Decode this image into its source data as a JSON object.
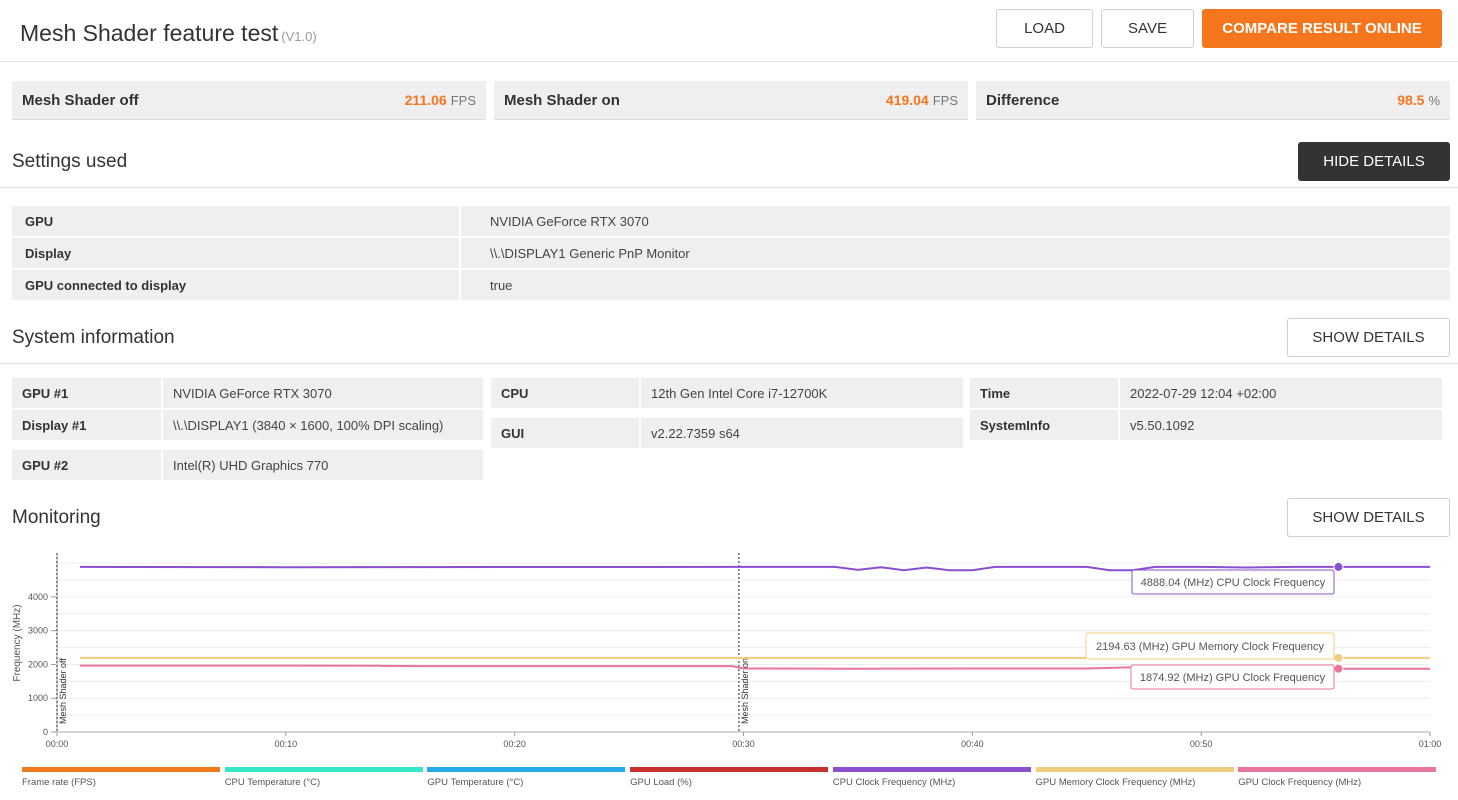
{
  "header": {
    "title": "Mesh Shader feature test",
    "version": "(V1.0)",
    "load_label": "LOAD",
    "save_label": "SAVE",
    "compare_label": "COMPARE RESULT ONLINE"
  },
  "scores": [
    {
      "name": "Mesh Shader off",
      "value": "211.06",
      "unit": "FPS"
    },
    {
      "name": "Mesh Shader on",
      "value": "419.04",
      "unit": "FPS"
    },
    {
      "name": "Difference",
      "value": "98.5",
      "unit": "%"
    }
  ],
  "settings": {
    "title": "Settings used",
    "toggle_label": "HIDE DETAILS",
    "rows": [
      {
        "key": "GPU",
        "value": "NVIDIA GeForce RTX 3070"
      },
      {
        "key": "Display",
        "value": "\\\\.\\DISPLAY1 Generic PnP Monitor"
      },
      {
        "key": "GPU connected to display",
        "value": "true"
      }
    ]
  },
  "system": {
    "title": "System information",
    "toggle_label": "SHOW DETAILS",
    "gpu1_key": "GPU #1",
    "gpu1_val": "NVIDIA GeForce RTX 3070",
    "display1_key": "Display #1",
    "display1_val": "\\\\.\\DISPLAY1 (3840 × 1600, 100% DPI scaling)",
    "gpu2_key": "GPU #2",
    "gpu2_val": "Intel(R) UHD Graphics 770",
    "cpu_key": "CPU",
    "cpu_val": "12th Gen Intel Core i7-12700K",
    "gui_key": "GUI",
    "gui_val": "v2.22.7359 s64",
    "time_key": "Time",
    "time_val": "2022-07-29 12:04 +02:00",
    "sysinfo_key": "SystemInfo",
    "sysinfo_val": "v5.50.1092"
  },
  "monitoring": {
    "title": "Monitoring",
    "toggle_label": "SHOW DETAILS"
  },
  "chart_data": {
    "type": "line",
    "ylabel": "Frequency (MHz)",
    "ylim": [
      0,
      5300
    ],
    "yticks": [
      0,
      1000,
      2000,
      3000,
      4000
    ],
    "xlim": [
      0,
      60
    ],
    "xticks": [
      "00:00",
      "00:10",
      "00:20",
      "00:30",
      "00:40",
      "00:50",
      "01:00"
    ],
    "markers": [
      {
        "label": "Mesh Shader off",
        "x": 0
      },
      {
        "label": "Mesh Shader on",
        "x": 29.8
      }
    ],
    "series": [
      {
        "name": "CPU Clock Frequency (MHz)",
        "color": "#8a4fce",
        "points": [
          [
            1,
            4888
          ],
          [
            10,
            4880
          ],
          [
            20,
            4885
          ],
          [
            29.8,
            4888
          ],
          [
            34,
            4888
          ],
          [
            35,
            4800
          ],
          [
            36,
            4880
          ],
          [
            37,
            4790
          ],
          [
            38,
            4870
          ],
          [
            39,
            4790
          ],
          [
            40,
            4790
          ],
          [
            41,
            4888
          ],
          [
            45,
            4888
          ],
          [
            46,
            4790
          ],
          [
            47,
            4790
          ],
          [
            48,
            4888
          ],
          [
            50,
            4888
          ],
          [
            52,
            4870
          ],
          [
            54,
            4888
          ],
          [
            56,
            4888
          ],
          [
            58,
            4888
          ],
          [
            60,
            4888
          ]
        ]
      },
      {
        "name": "GPU Memory Clock Frequency (MHz)",
        "color": "#f0cc7d",
        "points": [
          [
            1,
            2194.63
          ],
          [
            60,
            2194.63
          ]
        ]
      },
      {
        "name": "GPU Clock Frequency (MHz)",
        "color": "#e9759d",
        "points": [
          [
            1,
            1965
          ],
          [
            10,
            1965
          ],
          [
            14,
            1960
          ],
          [
            16,
            1950
          ],
          [
            29.5,
            1950
          ],
          [
            30,
            1880
          ],
          [
            35,
            1875
          ],
          [
            40,
            1880
          ],
          [
            45,
            1880
          ],
          [
            47,
            1920
          ],
          [
            50,
            1920
          ],
          [
            55,
            1874.92
          ],
          [
            60,
            1874.92
          ]
        ]
      }
    ],
    "tooltips": [
      {
        "text": "4888.04 (MHz) CPU Clock Frequency",
        "x": 56,
        "y": 4888.04,
        "color": "#8a4fce"
      },
      {
        "text": "2194.63 (MHz) GPU Memory Clock Frequency",
        "x": 56,
        "y": 2194.63,
        "color": "#f0cc7d"
      },
      {
        "text": "1874.92 (MHz) GPU Clock Frequency",
        "x": 56,
        "y": 1874.92,
        "color": "#e9759d"
      }
    ],
    "legend": [
      {
        "label": "Frame rate (FPS)",
        "color": "#f07b1f"
      },
      {
        "label": "CPU Temperature (°C)",
        "color": "#35e7c9"
      },
      {
        "label": "GPU Temperature (°C)",
        "color": "#27a8e8"
      },
      {
        "label": "GPU Load (%)",
        "color": "#c8302e"
      },
      {
        "label": "CPU Clock Frequency (MHz)",
        "color": "#8a4fce"
      },
      {
        "label": "GPU Memory Clock Frequency (MHz)",
        "color": "#f0cc7d"
      },
      {
        "label": "GPU Clock Frequency (MHz)",
        "color": "#e9759d"
      }
    ]
  }
}
